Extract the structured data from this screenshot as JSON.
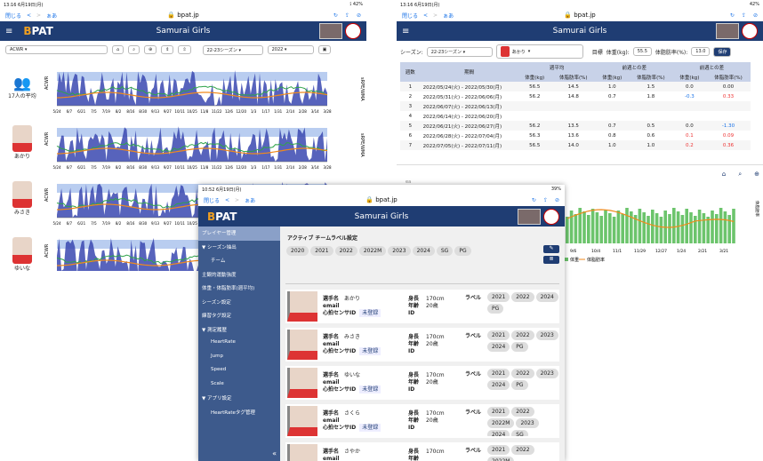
{
  "w1": {
    "time": "13:16 6月19日(月)",
    "battery": "42%",
    "back": "閉じる",
    "aa": "ぁあ",
    "url": "bpat.jp",
    "app": "Samurai Girls",
    "select1": "ACWR",
    "season": "22-23シーズン",
    "year": "2022",
    "avg_label": "17人の平均",
    "players": [
      "あかり",
      "みさき",
      "ゆいな"
    ],
    "ylabel": "ACWR",
    "ylabel2": "sRPE/WMA",
    "xdates": [
      "5/24",
      "6/7",
      "6/21",
      "7/5",
      "7/19",
      "8/2",
      "8/16",
      "8/30",
      "9/13",
      "9/27",
      "10/11",
      "10/25",
      "11/8",
      "11/22",
      "12/6",
      "12/20",
      "1/3",
      "1/17",
      "1/31",
      "2/14",
      "2/28",
      "3/14",
      "3/28"
    ]
  },
  "w2": {
    "time": "13:16 6月19日(月)",
    "battery": "42%",
    "back": "閉じる",
    "aa": "ぁあ",
    "url": "bpat.jp",
    "app": "Samurai Girls",
    "season_label": "シーズン:",
    "season": "22-23シーズン",
    "player": "あかり",
    "target_label": "目標",
    "weight_label": "体重(kg):",
    "weight": "55.5",
    "fat_label": "体脂肪率(%):",
    "fat": "13.0",
    "save": "保存",
    "headers": {
      "week": "週数",
      "period": "期間",
      "avg": "週平均",
      "diff_prev": "前週との差",
      "diff_target": "前週との差",
      "kg": "体重(kg)",
      "pct": "体脂肪率(%)"
    },
    "rows": [
      [
        "1",
        "2022/05/24(火) - 2022/05/30(月)",
        "56.5",
        "14.5",
        "1.0",
        "1.5",
        "0.0",
        "0.00"
      ],
      [
        "2",
        "2022/05/31(火) - 2022/06/06(月)",
        "56.2",
        "14.8",
        "0.7",
        "1.8",
        "-0.3",
        "0.33"
      ],
      [
        "3",
        "2022/06/07(火) - 2022/06/13(月)",
        "",
        "",
        "",
        "",
        "",
        ""
      ],
      [
        "4",
        "2022/06/14(火) - 2022/06/20(月)",
        "",
        "",
        "",
        "",
        "",
        ""
      ],
      [
        "5",
        "2022/06/21(火) - 2022/06/27(月)",
        "56.2",
        "13.5",
        "0.7",
        "0.5",
        "0.0",
        "-1.30"
      ],
      [
        "6",
        "2022/06/28(火) - 2022/07/04(月)",
        "56.3",
        "13.6",
        "0.8",
        "0.6",
        "0.1",
        "0.09"
      ],
      [
        "7",
        "2022/07/05(火) - 2022/07/11(月)",
        "56.5",
        "14.0",
        "1.0",
        "1.0",
        "0.2",
        "0.36"
      ]
    ],
    "legend": [
      "体重",
      "体脂肪率"
    ],
    "axis_right": "体脂肪率",
    "xdates": [
      "9/6",
      "10/4",
      "11/1",
      "11/29",
      "12/27",
      "1/24",
      "2/21",
      "3/21"
    ]
  },
  "w3": {
    "time": "10:52 6月19日(月)",
    "battery": "39%",
    "back": "閉じる",
    "aa": "ぁあ",
    "url": "bpat.jp",
    "app": "Samurai Girls",
    "menu": [
      "プレイヤー管理",
      "▼ シーズン抽出",
      "チーム",
      "主観的運動強度",
      "体重・体脂肪率(週平均)",
      "シーズン設定",
      "練習タグ設定",
      "▼ 測定履歴",
      "HeartRate",
      "Jump",
      "Speed",
      "Scale",
      "▼ アプリ設定",
      "HeartRateタグ管理"
    ],
    "label_title": "アクティブ チームラベル設定",
    "labels": [
      "2020",
      "2021",
      "2022",
      "2022M",
      "2023",
      "2024",
      "SG",
      "PG"
    ],
    "players": [
      {
        "name": "あかり",
        "height": "170cm",
        "age": "20歳",
        "tags": [
          "2021",
          "2022",
          "2024",
          "PG"
        ]
      },
      {
        "name": "みさき",
        "height": "170cm",
        "age": "20歳",
        "tags": [
          "2021",
          "2022",
          "2023",
          "2024",
          "PG"
        ]
      },
      {
        "name": "ゆいな",
        "height": "170cm",
        "age": "20歳",
        "tags": [
          "2021",
          "2022",
          "2023",
          "2024",
          "PG"
        ]
      },
      {
        "name": "さくら",
        "height": "170cm",
        "age": "20歳",
        "tags": [
          "2021",
          "2022",
          "2022M",
          "2023",
          "2024",
          "SG"
        ]
      },
      {
        "name": "さやか",
        "height": "170cm",
        "age": "",
        "tags": [
          "2021",
          "2022",
          "2022M"
        ]
      }
    ],
    "f": {
      "name": "選手名",
      "email": "email",
      "hr": "心拍センサID",
      "unreg": "未登録",
      "height": "身長",
      "age": "年齢",
      "id": "ID",
      "label": "ラベル"
    }
  }
}
